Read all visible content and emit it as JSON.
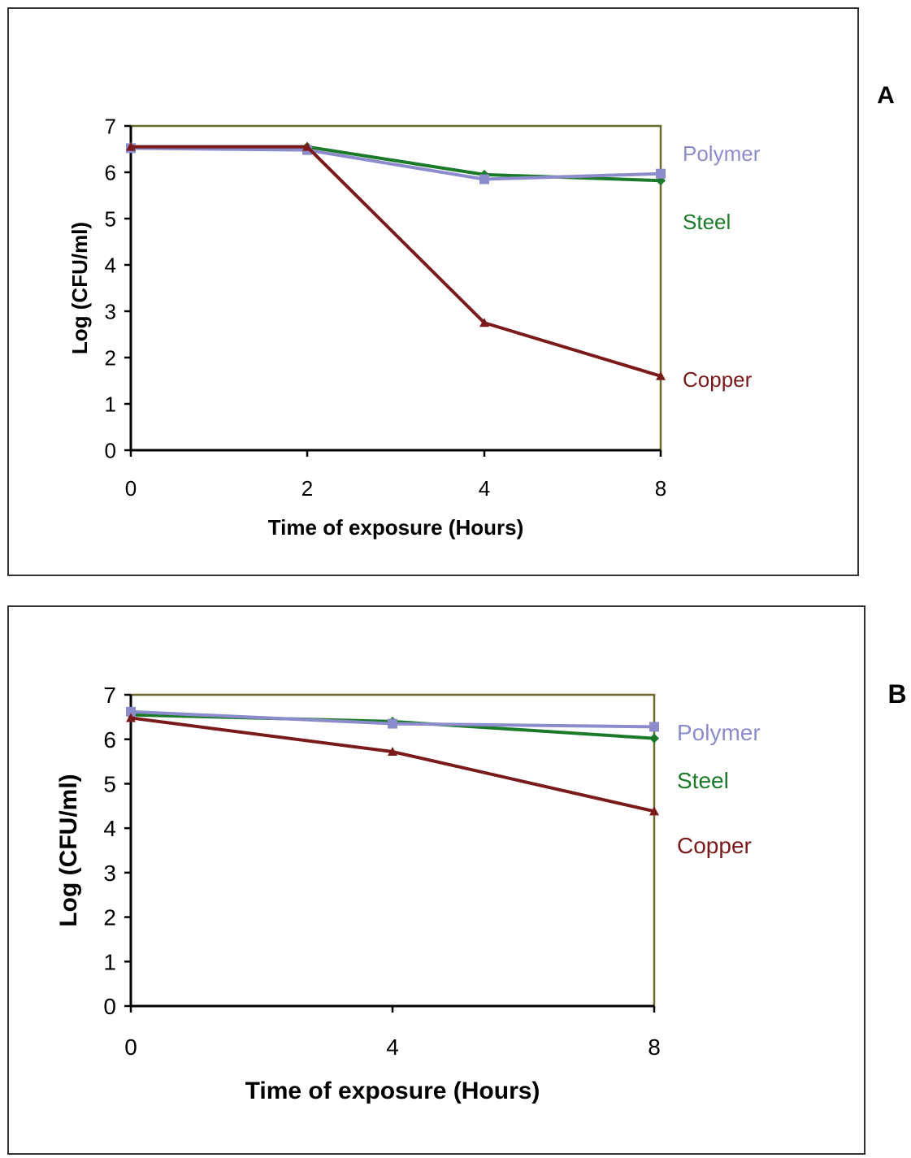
{
  "chart_data": [
    {
      "type": "line",
      "panel_label": "A",
      "title": "",
      "xlabel": "Time of exposure (Hours)",
      "ylabel": "Log (CFU/ml)",
      "x": [
        "0",
        "2",
        "4",
        "8"
      ],
      "ylim": [
        0,
        7
      ],
      "yticks": [
        "0",
        "1",
        "2",
        "3",
        "4",
        "5",
        "6",
        "7"
      ],
      "grid": false,
      "series": [
        {
          "name": "Steel",
          "color": "#1b7a2a",
          "values": [
            6.55,
            6.55,
            5.95,
            5.82
          ]
        },
        {
          "name": "Polymer",
          "color": "#8c8ccc",
          "values": [
            6.52,
            6.48,
            5.85,
            5.97
          ]
        },
        {
          "name": "Copper",
          "color": "#7a1a1a",
          "values": [
            6.55,
            6.55,
            2.75,
            1.6
          ]
        }
      ]
    },
    {
      "type": "line",
      "panel_label": "B",
      "title": "",
      "xlabel": "Time of exposure (Hours)",
      "ylabel": "Log (CFU/ml)",
      "x": [
        "0",
        "4",
        "8"
      ],
      "ylim": [
        0,
        7
      ],
      "yticks": [
        "0",
        "1",
        "2",
        "3",
        "4",
        "5",
        "6",
        "7"
      ],
      "grid": false,
      "series": [
        {
          "name": "Steel",
          "color": "#1b7a2a",
          "values": [
            6.55,
            6.4,
            6.02
          ]
        },
        {
          "name": "Polymer",
          "color": "#8c8ccc",
          "values": [
            6.62,
            6.35,
            6.28
          ]
        },
        {
          "name": "Copper",
          "color": "#7a1a1a",
          "values": [
            6.48,
            5.72,
            4.38
          ]
        }
      ]
    }
  ]
}
